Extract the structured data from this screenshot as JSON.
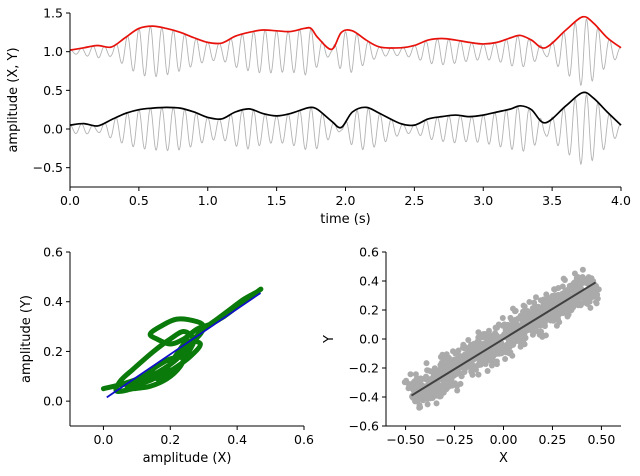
{
  "colors": {
    "carrier": "#b3b3b3",
    "envelope_y": "#e8120c",
    "envelope_x": "#000000",
    "loop_green": "#0a7a0a",
    "fit_blue": "#1010c8",
    "scatter_gray": "#aaaaaa",
    "fit_dark": "#404040"
  },
  "chart_data": [
    {
      "type": "line",
      "xlabel": "time (s)",
      "ylabel": "amplitude (X, Y)",
      "xlim": [
        0.0,
        4.0
      ],
      "ylim": [
        -0.75,
        1.5
      ],
      "x_ticks": [
        "0.0",
        "0.5",
        "1.0",
        "1.5",
        "2.0",
        "2.5",
        "3.0",
        "3.5",
        "4.0"
      ],
      "y_ticks": [
        "−0.5",
        "0.0",
        "0.5",
        "1.0",
        "1.5"
      ],
      "envelope_x_ticks": [
        0.0,
        0.1,
        0.2,
        0.3,
        0.4,
        0.5,
        0.6,
        0.7,
        0.8,
        0.9,
        1.0,
        1.1,
        1.2,
        1.3,
        1.4,
        1.5,
        1.6,
        1.7,
        1.75,
        1.8,
        1.9,
        1.97,
        2.05,
        2.15,
        2.25,
        2.4,
        2.5,
        2.6,
        2.7,
        2.8,
        2.9,
        3.0,
        3.1,
        3.2,
        3.27,
        3.35,
        3.45,
        3.6,
        3.72,
        3.8,
        3.9,
        4.0
      ],
      "series": [
        {
          "role": "lower envelope (X)",
          "values": [
            0.05,
            0.07,
            0.04,
            0.12,
            0.2,
            0.25,
            0.27,
            0.28,
            0.27,
            0.22,
            0.15,
            0.13,
            0.22,
            0.26,
            0.2,
            0.17,
            0.2,
            0.26,
            0.28,
            0.25,
            0.1,
            0.02,
            0.22,
            0.28,
            0.2,
            0.07,
            0.05,
            0.13,
            0.16,
            0.18,
            0.16,
            0.18,
            0.22,
            0.26,
            0.3,
            0.25,
            0.08,
            0.3,
            0.47,
            0.4,
            0.22,
            0.05
          ]
        },
        {
          "role": "upper envelope (Y)",
          "values": [
            1.02,
            1.05,
            1.08,
            1.06,
            1.18,
            1.3,
            1.33,
            1.3,
            1.25,
            1.18,
            1.12,
            1.11,
            1.2,
            1.25,
            1.28,
            1.27,
            1.26,
            1.3,
            1.3,
            1.18,
            1.03,
            1.25,
            1.27,
            1.15,
            1.06,
            1.05,
            1.08,
            1.15,
            1.17,
            1.15,
            1.12,
            1.1,
            1.12,
            1.18,
            1.21,
            1.15,
            1.05,
            1.28,
            1.45,
            1.37,
            1.18,
            1.05
          ]
        }
      ],
      "carrier_cycles": 48
    },
    {
      "type": "scatter",
      "xlabel": "amplitude (X)",
      "ylabel": "amplitude (Y)",
      "xlim": [
        -0.1,
        0.6
      ],
      "ylim": [
        -0.1,
        0.6
      ],
      "x_ticks": [
        "0.0",
        "0.2",
        "0.4",
        "0.6"
      ],
      "y_ticks": [
        "0.0",
        "0.2",
        "0.4",
        "0.6"
      ],
      "points": [
        [
          0.0,
          0.05
        ],
        [
          0.06,
          0.07
        ],
        [
          0.12,
          0.1
        ],
        [
          0.16,
          0.14
        ],
        [
          0.2,
          0.17
        ],
        [
          0.24,
          0.18
        ],
        [
          0.26,
          0.21
        ],
        [
          0.27,
          0.25
        ],
        [
          0.24,
          0.28
        ],
        [
          0.2,
          0.25
        ],
        [
          0.15,
          0.2
        ],
        [
          0.09,
          0.13
        ],
        [
          0.05,
          0.08
        ],
        [
          0.04,
          0.04
        ],
        [
          0.09,
          0.05
        ],
        [
          0.14,
          0.06
        ],
        [
          0.19,
          0.09
        ],
        [
          0.23,
          0.14
        ],
        [
          0.25,
          0.2
        ],
        [
          0.27,
          0.24
        ],
        [
          0.29,
          0.27
        ],
        [
          0.3,
          0.3
        ],
        [
          0.28,
          0.32
        ],
        [
          0.22,
          0.33
        ],
        [
          0.17,
          0.3
        ],
        [
          0.14,
          0.27
        ],
        [
          0.16,
          0.25
        ],
        [
          0.2,
          0.23
        ],
        [
          0.24,
          0.25
        ],
        [
          0.28,
          0.29
        ],
        [
          0.32,
          0.31
        ],
        [
          0.36,
          0.34
        ],
        [
          0.4,
          0.38
        ],
        [
          0.44,
          0.42
        ],
        [
          0.47,
          0.45
        ],
        [
          0.46,
          0.44
        ],
        [
          0.42,
          0.41
        ],
        [
          0.38,
          0.37
        ],
        [
          0.34,
          0.33
        ],
        [
          0.3,
          0.29
        ],
        [
          0.27,
          0.25
        ],
        [
          0.25,
          0.22
        ],
        [
          0.22,
          0.17
        ],
        [
          0.18,
          0.13
        ],
        [
          0.14,
          0.1
        ],
        [
          0.1,
          0.08
        ],
        [
          0.07,
          0.06
        ],
        [
          0.11,
          0.07
        ],
        [
          0.15,
          0.09
        ],
        [
          0.18,
          0.12
        ],
        [
          0.2,
          0.15
        ],
        [
          0.22,
          0.19
        ],
        [
          0.25,
          0.24
        ],
        [
          0.29,
          0.23
        ],
        [
          0.26,
          0.18
        ],
        [
          0.21,
          0.13
        ],
        [
          0.16,
          0.09
        ]
      ],
      "fit_line": [
        [
          0.01,
          0.015
        ],
        [
          0.47,
          0.435
        ]
      ]
    },
    {
      "type": "scatter",
      "xlabel": "X",
      "ylabel": "Y",
      "xlim": [
        -0.6,
        0.6
      ],
      "ylim": [
        -0.6,
        0.6
      ],
      "x_ticks": [
        "−0.50",
        "−0.25",
        "0.00",
        "0.25",
        "0.50"
      ],
      "y_ticks": [
        "−0.6",
        "−0.4",
        "−0.2",
        "0.0",
        "0.2",
        "0.4",
        "0.6"
      ],
      "n_points": 900,
      "fit_line": [
        [
          -0.47,
          -0.39
        ],
        [
          0.47,
          0.39
        ]
      ]
    }
  ]
}
